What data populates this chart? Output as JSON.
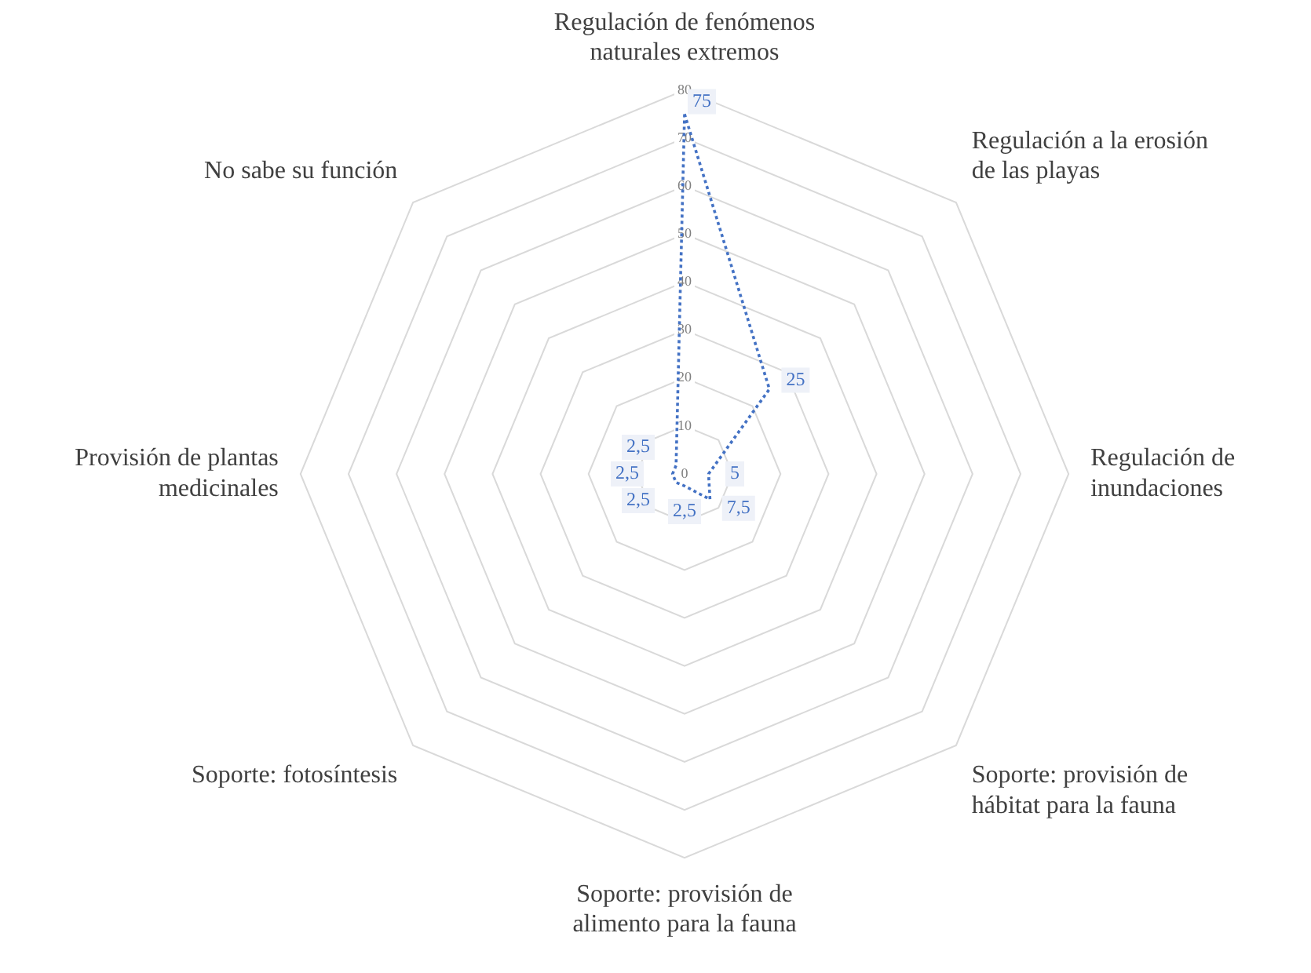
{
  "chart_data": {
    "type": "radar",
    "categories": [
      "Regulación de fenómenos naturales extremos",
      "Regulación a la erosión de las playas",
      "Regulación de inundaciones",
      "Soporte: provisión de hábitat para la fauna",
      "Soporte: provisión de alimento para la fauna",
      "Soporte: fotosíntesis",
      "Provisión de plantas medicinales",
      "No sabe su función"
    ],
    "series": [
      {
        "color": "#4472c4",
        "values": [
          75,
          25,
          5,
          7.5,
          2.5,
          2.5,
          2.5,
          2.5
        ],
        "value_labels": [
          "75",
          "25",
          "5",
          "7,5",
          "2,5",
          "2,5",
          "2,5",
          "2,5"
        ]
      }
    ],
    "ylim": [
      0,
      80
    ],
    "yticks": [
      0,
      10,
      20,
      30,
      40,
      50,
      60,
      70,
      80
    ],
    "grid": true,
    "line_style": "dotted",
    "marker": "none"
  }
}
